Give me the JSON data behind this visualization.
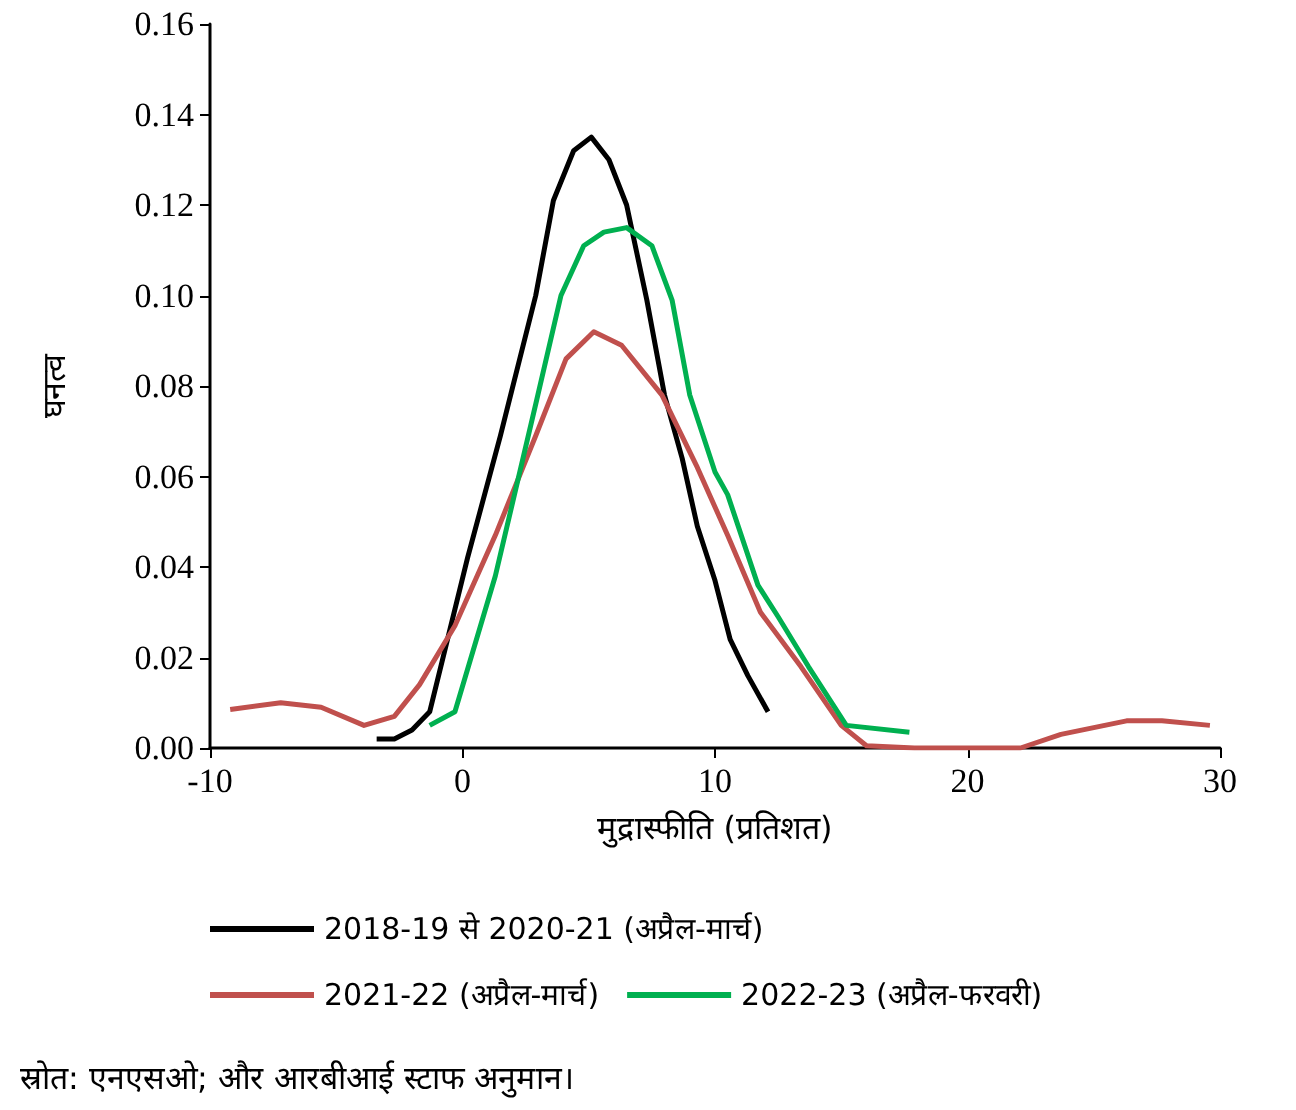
{
  "chart_data": {
    "type": "line",
    "xlabel": "मुद्रास्फीति (प्रतिशत)",
    "ylabel": "घनत्व",
    "xlim": [
      -10,
      30
    ],
    "xticks": [
      -10,
      0,
      10,
      20,
      30
    ],
    "ylim": [
      0,
      0.16
    ],
    "yticks": [
      {
        "value": 0,
        "label": "0.00"
      },
      {
        "value": 0.02,
        "label": "0.02"
      },
      {
        "value": 0.04,
        "label": "0.04"
      },
      {
        "value": 0.06,
        "label": "0.06"
      },
      {
        "value": 0.08,
        "label": "0.08"
      },
      {
        "value": 0.1,
        "label": "0.10"
      },
      {
        "value": 0.12,
        "label": "0.12"
      },
      {
        "value": 0.14,
        "label": "0.14"
      },
      {
        "value": 0.16,
        "label": "0.16"
      }
    ],
    "grid": false,
    "legend": "bottom",
    "marker": "none",
    "line_style": "solid",
    "annotations": [
      "स्रोत: एनएसओ; और आरबीआई स्टाफ अनुमान।"
    ],
    "series": [
      {
        "name": "2018-19 से 2020-21 (अप्रैल-मार्च)",
        "color": "#000000",
        "x": [
          -3.4,
          -2.7,
          -2.0,
          -1.3,
          0.2,
          1.5,
          2.9,
          3.6,
          4.4,
          5.1,
          5.8,
          6.5,
          7.3,
          8.0,
          8.7,
          9.3,
          10.0,
          10.6,
          11.3,
          12.1
        ],
        "values": [
          0.002,
          0.002,
          0.004,
          0.008,
          0.042,
          0.069,
          0.1,
          0.121,
          0.132,
          0.135,
          0.13,
          0.12,
          0.099,
          0.078,
          0.064,
          0.049,
          0.037,
          0.024,
          0.016,
          0.008
        ]
      },
      {
        "name": "2021-22 (अप्रैल-मार्च)",
        "color": "#c0504d",
        "x": [
          -9.2,
          -7.2,
          -5.6,
          -3.9,
          -2.7,
          -1.7,
          -0.3,
          1.3,
          2.9,
          4.1,
          5.2,
          6.3,
          7.9,
          9.3,
          10.5,
          11.8,
          13.4,
          15.0,
          16.0,
          17.9,
          21.1,
          22.1,
          23.7,
          26.3,
          27.7,
          29.6
        ],
        "values": [
          0.0085,
          0.01,
          0.009,
          0.005,
          0.007,
          0.014,
          0.027,
          0.047,
          0.069,
          0.086,
          0.092,
          0.089,
          0.078,
          0.062,
          0.047,
          0.03,
          0.018,
          0.005,
          0.0005,
          0,
          0,
          0,
          0.003,
          0.006,
          0.006,
          0.005
        ]
      },
      {
        "name": "2022-23 (अप्रैल-फरवरी)",
        "color": "#00b050",
        "x": [
          -1.3,
          -0.3,
          1.3,
          2.9,
          3.9,
          4.8,
          5.6,
          6.5,
          7.5,
          8.3,
          9.0,
          10.0,
          10.5,
          11.7,
          12.5,
          13.7,
          15.2,
          17.7
        ],
        "values": [
          0.005,
          0.008,
          0.038,
          0.076,
          0.1,
          0.111,
          0.114,
          0.115,
          0.111,
          0.099,
          0.078,
          0.061,
          0.056,
          0.036,
          0.029,
          0.018,
          0.005,
          0.0035
        ]
      }
    ]
  }
}
